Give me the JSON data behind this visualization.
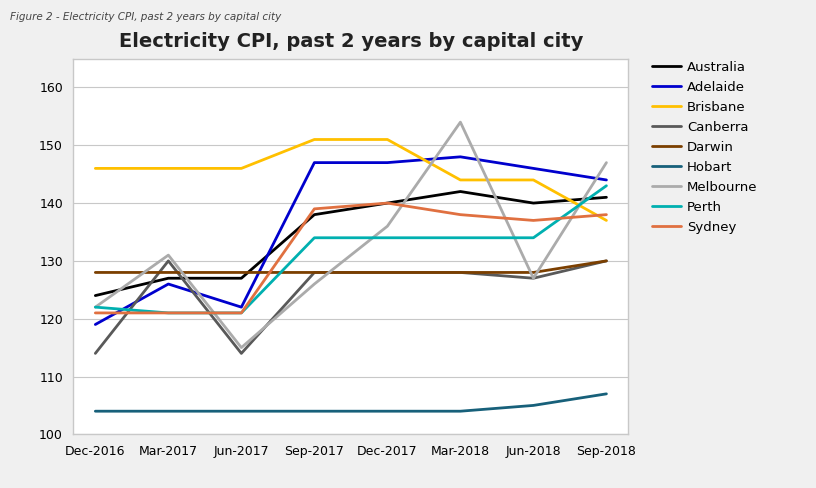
{
  "title": "Electricity CPI, past 2 years by capital city",
  "figure_label": "Figure 2 - Electricity CPI, past 2 years by capital city",
  "x_labels": [
    "Dec-2016",
    "Mar-2017",
    "Jun-2017",
    "Sep-2017",
    "Dec-2017",
    "Mar-2018",
    "Jun-2018",
    "Sep-2018"
  ],
  "ylim": [
    100,
    165
  ],
  "yticks": [
    100,
    110,
    120,
    130,
    140,
    150,
    160
  ],
  "series": {
    "Australia": {
      "color": "#000000",
      "lw": 2.0,
      "values": [
        124,
        127,
        127,
        138,
        140,
        142,
        140,
        141
      ]
    },
    "Adelaide": {
      "color": "#0000CD",
      "lw": 2.0,
      "values": [
        119,
        126,
        122,
        147,
        147,
        148,
        146,
        144
      ]
    },
    "Brisbane": {
      "color": "#FFC000",
      "lw": 2.0,
      "values": [
        146,
        146,
        146,
        151,
        151,
        144,
        144,
        137
      ]
    },
    "Canberra": {
      "color": "#595959",
      "lw": 2.0,
      "values": [
        114,
        130,
        114,
        128,
        128,
        128,
        127,
        130
      ]
    },
    "Darwin": {
      "color": "#7B3F00",
      "lw": 2.0,
      "values": [
        128,
        128,
        128,
        128,
        128,
        128,
        128,
        130
      ]
    },
    "Hobart": {
      "color": "#17607A",
      "lw": 2.0,
      "values": [
        104,
        104,
        104,
        104,
        104,
        104,
        105,
        107
      ]
    },
    "Melbourne": {
      "color": "#ABABAB",
      "lw": 2.0,
      "values": [
        122,
        131,
        115,
        126,
        136,
        154,
        127,
        147
      ]
    },
    "Perth": {
      "color": "#00B0B0",
      "lw": 2.0,
      "values": [
        122,
        121,
        121,
        134,
        134,
        134,
        134,
        143
      ]
    },
    "Sydney": {
      "color": "#E07040",
      "lw": 2.0,
      "values": [
        121,
        121,
        121,
        139,
        140,
        138,
        137,
        138
      ]
    }
  },
  "background_color": "#f0f0f0",
  "plot_bg_color": "#ffffff",
  "box_edge_color": "#c8c8c8",
  "grid_color": "#c8c8c8",
  "title_fontsize": 14,
  "label_fontsize": 9,
  "legend_fontsize": 9.5
}
